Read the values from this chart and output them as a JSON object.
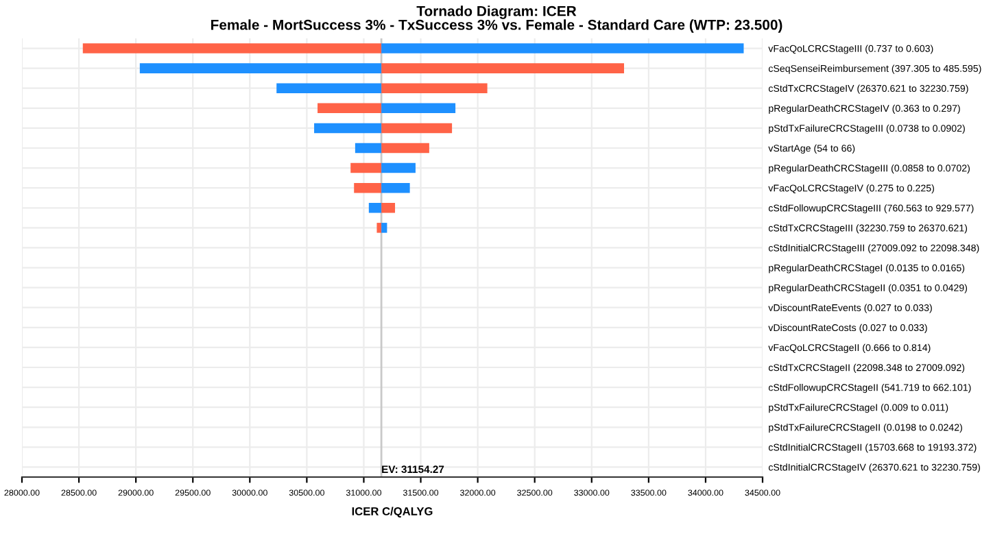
{
  "chart_data": {
    "type": "bar",
    "orientation": "horizontal",
    "title": "Tornado Diagram: ICER",
    "subtitle": "Female - MortSuccess 3% - TxSuccess 3% vs. Female - Standard Care (WTP: 23.500)",
    "xlabel": "ICER C/QALYG",
    "categories": [
      "vFacQoLCRCStageIII (0.737 to 0.603)",
      "cSeqSenseiReimbursement (397.305 to 485.595)",
      "cStdTxCRCStageIV (26370.621 to 32230.759)",
      "pRegularDeathCRCStageIV (0.363 to 0.297)",
      "pStdTxFailureCRCStageIII (0.0738 to 0.0902)",
      "vStartAge (54 to 66)",
      "pRegularDeathCRCStageIII (0.0858 to 0.0702)",
      "vFacQoLCRCStageIV (0.275 to 0.225)",
      "cStdFollowupCRCStageIII (760.563 to 929.577)",
      "cStdTxCRCStageIII (32230.759 to 26370.621)",
      "cStdInitialCRCStageIII (27009.092 to 22098.348)",
      "pRegularDeathCRCStageI (0.0135 to 0.0165)",
      "pRegularDeathCRCStageII (0.0351 to 0.0429)",
      "vDiscountRateEvents (0.027 to 0.033)",
      "vDiscountRateCosts (0.027 to 0.033)",
      "vFacQoLCRCStageII (0.666 to 0.814)",
      "cStdTxCRCStageII (22098.348 to 27009.092)",
      "cStdFollowupCRCStageII (541.719 to 662.101)",
      "pStdTxFailureCRCStageI (0.009 to 0.011)",
      "pStdTxFailureCRCStageII (0.0198 to 0.0242)",
      "cStdInitialCRCStageII (15703.668 to 19193.372)",
      "cStdInitialCRCStageIV (26370.621 to 32230.759)"
    ],
    "series": [
      {
        "color": "#ff6347",
        "base": [
          31154.27,
          31154.27,
          31154.27,
          31154.27,
          31154.27,
          31154.27,
          31154.27,
          31154.27,
          31154.27,
          31154.27,
          null,
          null,
          null,
          null,
          null,
          null,
          null,
          null,
          null,
          null,
          null,
          null
        ],
        "values": [
          -2620,
          2130,
          930,
          -560,
          620,
          420,
          -270,
          -240,
          120,
          -40,
          null,
          null,
          null,
          null,
          null,
          null,
          null,
          null,
          null,
          null,
          null,
          null
        ]
      },
      {
        "color": "#1e90ff",
        "base": [
          31154.27,
          31154.27,
          31154.27,
          31154.27,
          31154.27,
          31154.27,
          31154.27,
          31154.27,
          31154.27,
          31154.27,
          null,
          null,
          null,
          null,
          null,
          null,
          null,
          null,
          null,
          null,
          null,
          null
        ],
        "values": [
          3180,
          -2120,
          -920,
          650,
          -590,
          -230,
          300,
          250,
          -110,
          50,
          null,
          null,
          null,
          null,
          null,
          null,
          null,
          null,
          null,
          null,
          null,
          null
        ]
      }
    ],
    "xlim": [
      28000,
      34500
    ],
    "xticks": [
      {
        "value": 28000,
        "label": "28000.00"
      },
      {
        "value": 28500,
        "label": "28500.00"
      },
      {
        "value": 29000,
        "label": "29000.00"
      },
      {
        "value": 29500,
        "label": "29500.00"
      },
      {
        "value": 30000,
        "label": "30000.00"
      },
      {
        "value": 30500,
        "label": "30500.00"
      },
      {
        "value": 31000,
        "label": "31000.00"
      },
      {
        "value": 31500,
        "label": "31500.00"
      },
      {
        "value": 32000,
        "label": "32000.00"
      },
      {
        "value": 32500,
        "label": "32500.00"
      },
      {
        "value": 33000,
        "label": "33000.00"
      },
      {
        "value": 33500,
        "label": "33500.00"
      },
      {
        "value": 34000,
        "label": "34000.00"
      },
      {
        "value": 34500,
        "label": "34500.00"
      }
    ],
    "ref_lines": [
      {
        "axis": "x",
        "value": 31154.27,
        "label": "EV: 31154.27",
        "color": "#c8c8c8"
      }
    ],
    "grid": true
  }
}
